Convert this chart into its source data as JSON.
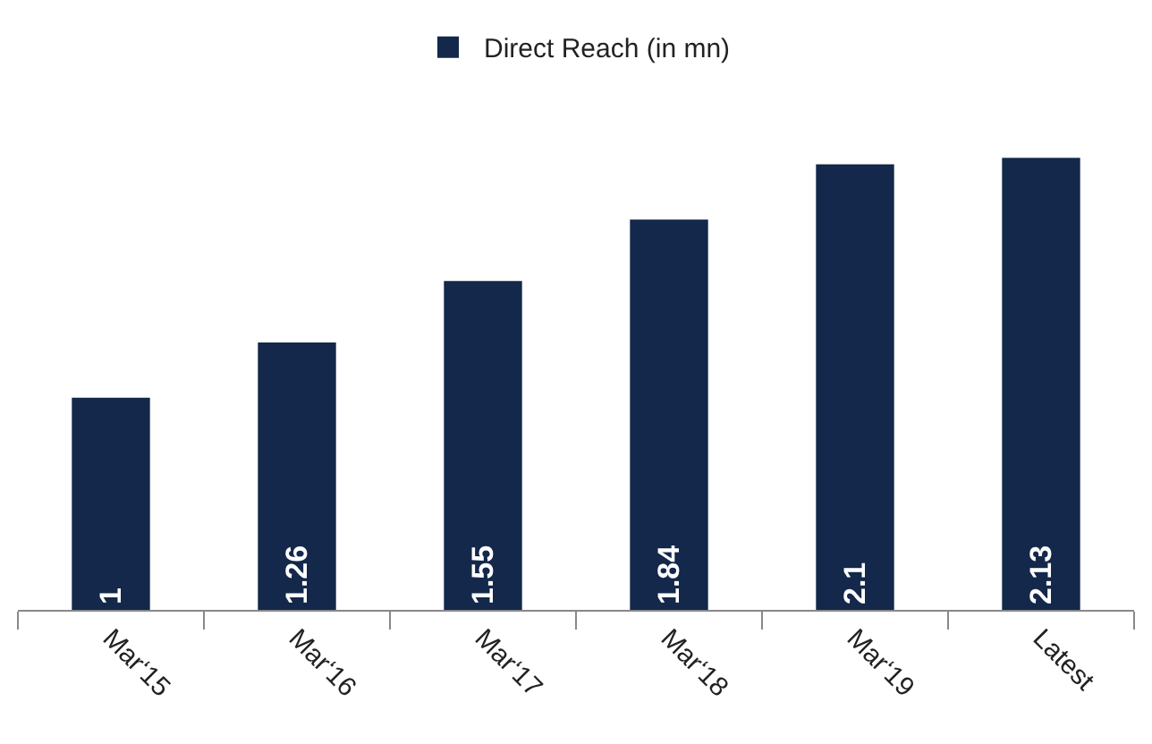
{
  "chart_data": {
    "type": "bar",
    "categories": [
      "Mar‘15",
      "Mar‘16",
      "Mar‘17",
      "Mar‘18",
      "Mar‘19",
      "Latest"
    ],
    "series": [
      {
        "name": "Direct Reach (in mn)",
        "color": "#13284a",
        "values": [
          1,
          1.26,
          1.55,
          1.84,
          2.1,
          2.13
        ]
      }
    ],
    "data_labels": true,
    "legend": "top",
    "grid": false
  }
}
